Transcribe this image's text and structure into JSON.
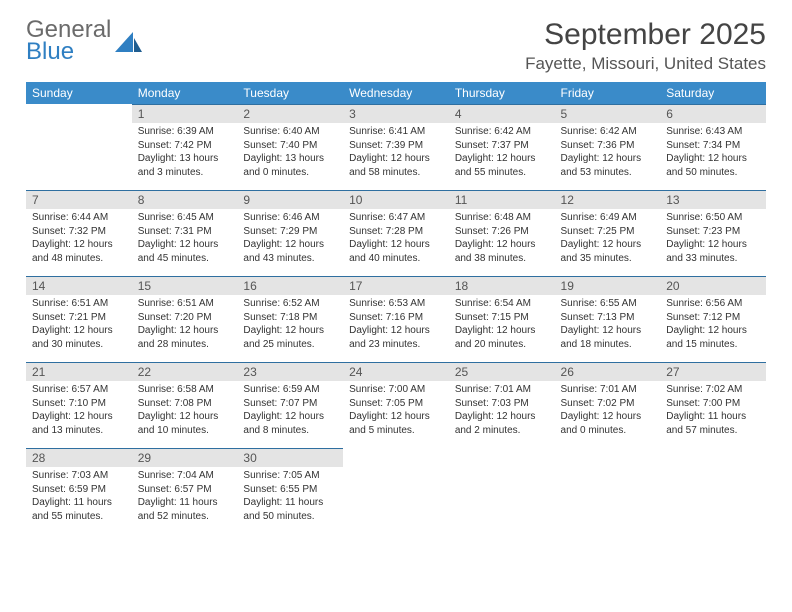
{
  "logo": {
    "line1": "General",
    "line2": "Blue"
  },
  "title": "September 2025",
  "location": "Fayette, Missouri, United States",
  "colors": {
    "header_bg": "#3a8bc9",
    "header_fg": "#ffffff",
    "daynum_bg": "#e4e4e4",
    "row_rule": "#2f6fa0",
    "text": "#333333",
    "logo_gray": "#6b6b6b",
    "logo_blue": "#2f7fc2"
  },
  "weekdays": [
    "Sunday",
    "Monday",
    "Tuesday",
    "Wednesday",
    "Thursday",
    "Friday",
    "Saturday"
  ],
  "weeks": [
    [
      null,
      {
        "n": "1",
        "sr": "6:39 AM",
        "ss": "7:42 PM",
        "dl": "13 hours and 3 minutes."
      },
      {
        "n": "2",
        "sr": "6:40 AM",
        "ss": "7:40 PM",
        "dl": "13 hours and 0 minutes."
      },
      {
        "n": "3",
        "sr": "6:41 AM",
        "ss": "7:39 PM",
        "dl": "12 hours and 58 minutes."
      },
      {
        "n": "4",
        "sr": "6:42 AM",
        "ss": "7:37 PM",
        "dl": "12 hours and 55 minutes."
      },
      {
        "n": "5",
        "sr": "6:42 AM",
        "ss": "7:36 PM",
        "dl": "12 hours and 53 minutes."
      },
      {
        "n": "6",
        "sr": "6:43 AM",
        "ss": "7:34 PM",
        "dl": "12 hours and 50 minutes."
      }
    ],
    [
      {
        "n": "7",
        "sr": "6:44 AM",
        "ss": "7:32 PM",
        "dl": "12 hours and 48 minutes."
      },
      {
        "n": "8",
        "sr": "6:45 AM",
        "ss": "7:31 PM",
        "dl": "12 hours and 45 minutes."
      },
      {
        "n": "9",
        "sr": "6:46 AM",
        "ss": "7:29 PM",
        "dl": "12 hours and 43 minutes."
      },
      {
        "n": "10",
        "sr": "6:47 AM",
        "ss": "7:28 PM",
        "dl": "12 hours and 40 minutes."
      },
      {
        "n": "11",
        "sr": "6:48 AM",
        "ss": "7:26 PM",
        "dl": "12 hours and 38 minutes."
      },
      {
        "n": "12",
        "sr": "6:49 AM",
        "ss": "7:25 PM",
        "dl": "12 hours and 35 minutes."
      },
      {
        "n": "13",
        "sr": "6:50 AM",
        "ss": "7:23 PM",
        "dl": "12 hours and 33 minutes."
      }
    ],
    [
      {
        "n": "14",
        "sr": "6:51 AM",
        "ss": "7:21 PM",
        "dl": "12 hours and 30 minutes."
      },
      {
        "n": "15",
        "sr": "6:51 AM",
        "ss": "7:20 PM",
        "dl": "12 hours and 28 minutes."
      },
      {
        "n": "16",
        "sr": "6:52 AM",
        "ss": "7:18 PM",
        "dl": "12 hours and 25 minutes."
      },
      {
        "n": "17",
        "sr": "6:53 AM",
        "ss": "7:16 PM",
        "dl": "12 hours and 23 minutes."
      },
      {
        "n": "18",
        "sr": "6:54 AM",
        "ss": "7:15 PM",
        "dl": "12 hours and 20 minutes."
      },
      {
        "n": "19",
        "sr": "6:55 AM",
        "ss": "7:13 PM",
        "dl": "12 hours and 18 minutes."
      },
      {
        "n": "20",
        "sr": "6:56 AM",
        "ss": "7:12 PM",
        "dl": "12 hours and 15 minutes."
      }
    ],
    [
      {
        "n": "21",
        "sr": "6:57 AM",
        "ss": "7:10 PM",
        "dl": "12 hours and 13 minutes."
      },
      {
        "n": "22",
        "sr": "6:58 AM",
        "ss": "7:08 PM",
        "dl": "12 hours and 10 minutes."
      },
      {
        "n": "23",
        "sr": "6:59 AM",
        "ss": "7:07 PM",
        "dl": "12 hours and 8 minutes."
      },
      {
        "n": "24",
        "sr": "7:00 AM",
        "ss": "7:05 PM",
        "dl": "12 hours and 5 minutes."
      },
      {
        "n": "25",
        "sr": "7:01 AM",
        "ss": "7:03 PM",
        "dl": "12 hours and 2 minutes."
      },
      {
        "n": "26",
        "sr": "7:01 AM",
        "ss": "7:02 PM",
        "dl": "12 hours and 0 minutes."
      },
      {
        "n": "27",
        "sr": "7:02 AM",
        "ss": "7:00 PM",
        "dl": "11 hours and 57 minutes."
      }
    ],
    [
      {
        "n": "28",
        "sr": "7:03 AM",
        "ss": "6:59 PM",
        "dl": "11 hours and 55 minutes."
      },
      {
        "n": "29",
        "sr": "7:04 AM",
        "ss": "6:57 PM",
        "dl": "11 hours and 52 minutes."
      },
      {
        "n": "30",
        "sr": "7:05 AM",
        "ss": "6:55 PM",
        "dl": "11 hours and 50 minutes."
      },
      null,
      null,
      null,
      null
    ]
  ],
  "labels": {
    "sunrise": "Sunrise:",
    "sunset": "Sunset:",
    "daylight": "Daylight:"
  }
}
